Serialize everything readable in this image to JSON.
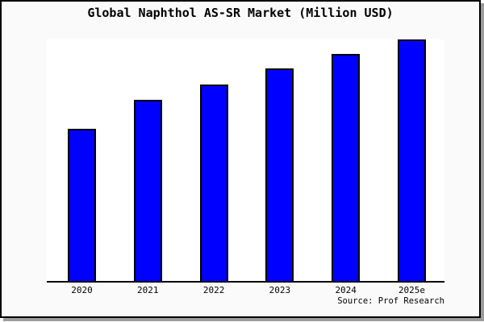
{
  "figure": {
    "background_color": "#fafafa",
    "plot_background_color": "#ffffff",
    "frame_color": "#000000",
    "shadow_color": "#9c9c9c"
  },
  "chart_data": {
    "type": "bar",
    "title": "Global Naphthol AS-SR Market (Million USD)",
    "categories": [
      "2020",
      "2021",
      "2022",
      "2023",
      "2024",
      "2025e"
    ],
    "values": [
      63,
      75,
      81.5,
      88,
      94,
      100
    ],
    "values_note": "relative scale estimated from bar heights; no y-axis tick labels shown (2025e bar = 100)",
    "xlabel": "",
    "ylabel": "",
    "ylim": [
      0,
      100
    ],
    "grid": false,
    "legend": "none",
    "bar_color": "#0000fe",
    "bar_edge_color": "#000000",
    "source_note": "Source: Prof Research"
  }
}
